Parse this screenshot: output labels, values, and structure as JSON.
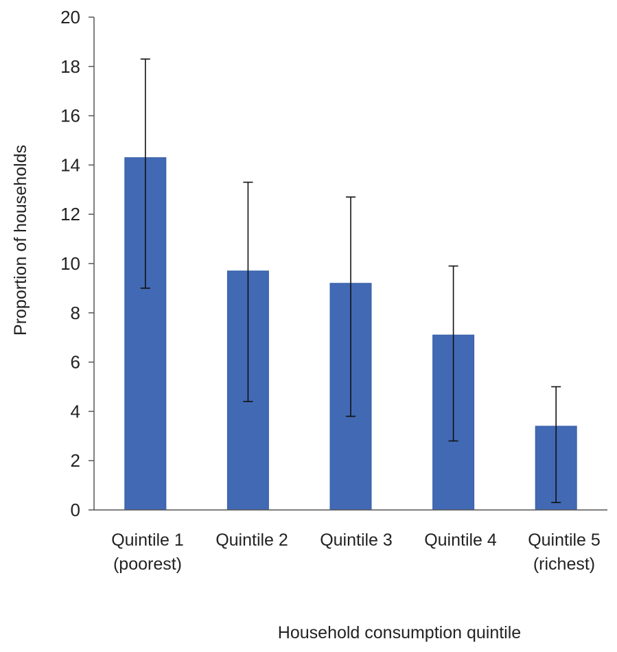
{
  "chart_data": {
    "type": "bar",
    "title": "",
    "xlabel": "Household consumption  quintile",
    "ylabel": "Proportion of households",
    "ylim": [
      0,
      20
    ],
    "yticks": [
      0,
      2,
      4,
      6,
      8,
      10,
      12,
      14,
      16,
      18,
      20
    ],
    "grid": false,
    "legend": "none",
    "categories": [
      [
        "Quintile 1",
        "(poorest)"
      ],
      [
        "Quintile 2"
      ],
      [
        "Quintile 3"
      ],
      [
        "Quintile 4"
      ],
      [
        "Quintile 5",
        "(richest)"
      ]
    ],
    "values": [
      14.3,
      9.7,
      9.2,
      7.1,
      3.4
    ],
    "error_low": [
      9.0,
      4.4,
      3.8,
      2.8,
      0.3
    ],
    "error_high": [
      18.3,
      13.3,
      12.7,
      9.9,
      5.0
    ],
    "colors": {
      "bar": "#4169b4",
      "bar_edge": "#3a5fa6",
      "axis": "#555555",
      "error_bar": "#111111",
      "text": "#222222"
    }
  }
}
